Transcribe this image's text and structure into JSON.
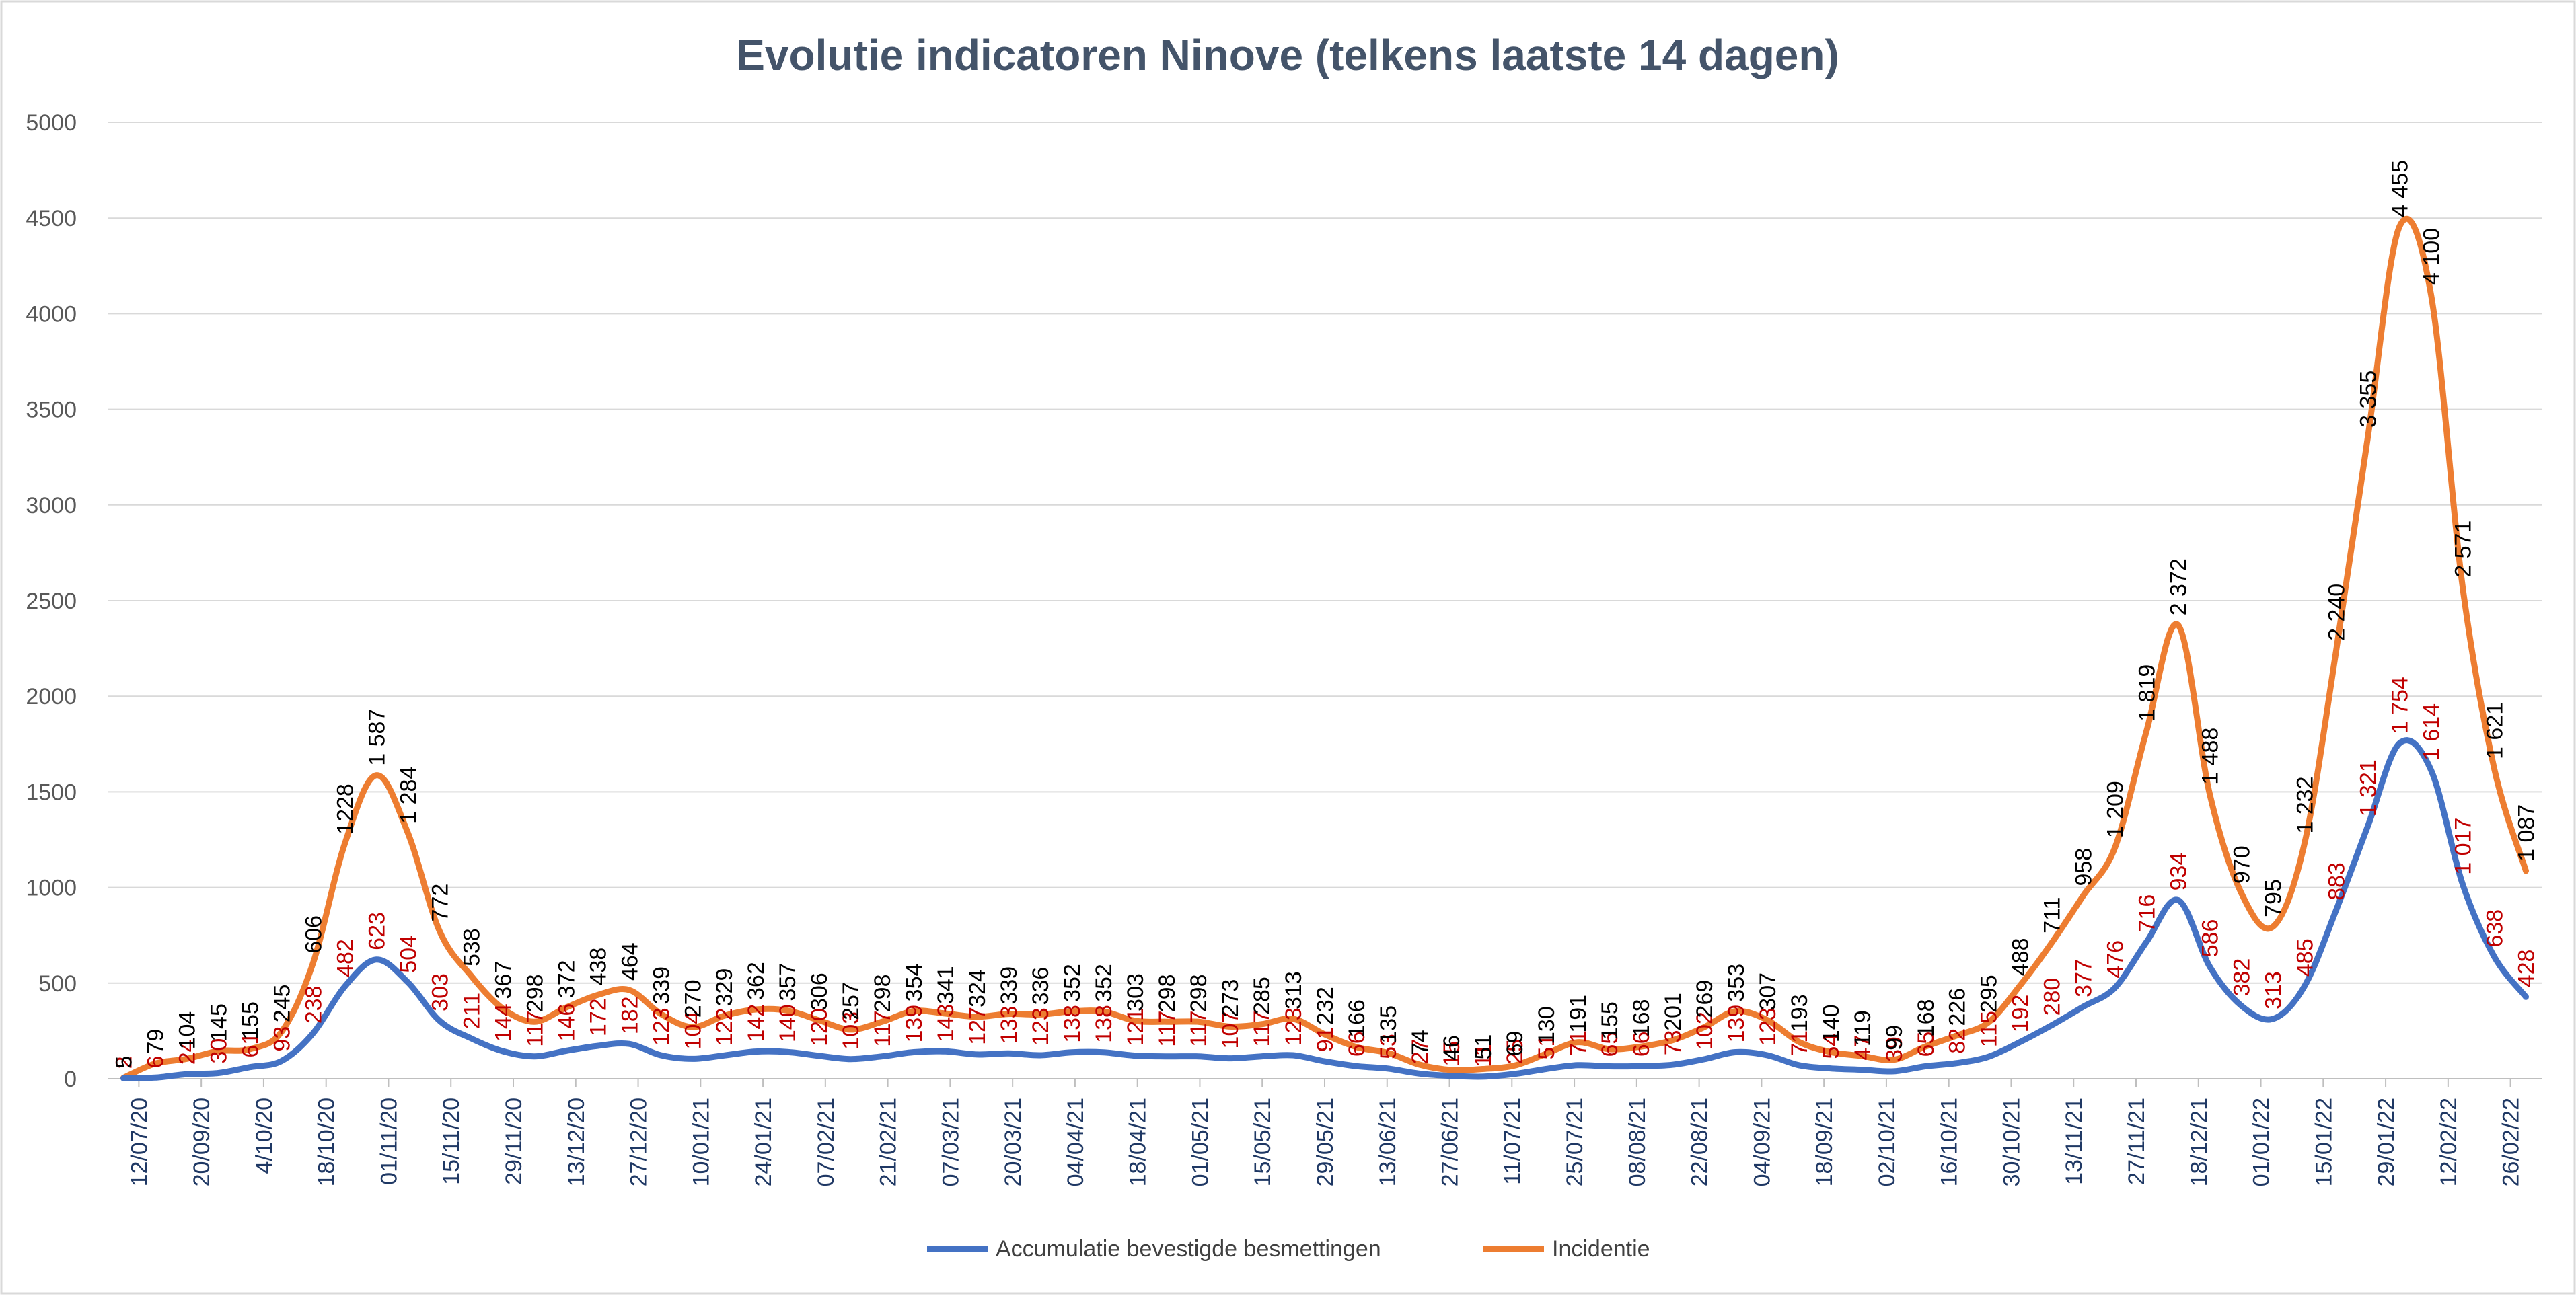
{
  "chart_data": {
    "type": "line",
    "title": "Evolutie indicatoren Ninove (telkens laatste 14 dagen)",
    "xlabel": "",
    "ylabel": "",
    "ylim": [
      0,
      5000
    ],
    "yticks": [
      "0",
      "500",
      "1000",
      "1500",
      "2000",
      "2500",
      "3000",
      "3500",
      "4000",
      "4500",
      "5000"
    ],
    "x_tick_labels": [
      "12/07/20",
      "20/09/20",
      "4/10/20",
      "18/10/20",
      "01/11/20",
      "15/11/20",
      "29/11/20",
      "13/12/20",
      "27/12/20",
      "10/01/21",
      "24/01/21",
      "07/02/21",
      "21/02/21",
      "07/03/21",
      "20/03/21",
      "04/04/21",
      "18/04/21",
      "01/05/21",
      "15/05/21",
      "29/05/21",
      "13/06/21",
      "27/06/21",
      "11/07/21",
      "25/07/21",
      "08/08/21",
      "22/08/21",
      "04/09/21",
      "18/09/21",
      "02/10/21",
      "16/10/21",
      "30/10/21",
      "13/11/21",
      "27/11/21",
      "18/12/21",
      "01/01/22",
      "15/01/22",
      "29/01/22",
      "12/02/22",
      "26/02/22"
    ],
    "series": [
      {
        "name": "Accumulatie bevestigde besmettingen",
        "color": "#4472c4",
        "label_color": "#c00000",
        "values": [
          2,
          6,
          24,
          30,
          61,
          93,
          238,
          482,
          623,
          504,
          303,
          211,
          144,
          117,
          146,
          172,
          182,
          123,
          104,
          122,
          142,
          140,
          120,
          103,
          117,
          139,
          143,
          127,
          133,
          123,
          138,
          138,
          121,
          117,
          117,
          107,
          117,
          123,
          91,
          66,
          53,
          27,
          15,
          11,
          25,
          51,
          71,
          65,
          66,
          73,
          102,
          139,
          123,
          71,
          54,
          47,
          39,
          65,
          82,
          115,
          192,
          280,
          377,
          476,
          716,
          934,
          586,
          382,
          313,
          485,
          883,
          1321,
          1754,
          1614,
          1017,
          638,
          428
        ],
        "labels": [
          "2",
          "6",
          "24",
          "30",
          "61",
          "93",
          "238",
          "482",
          "623",
          "504",
          "303",
          "211",
          "144",
          "117",
          "146",
          "172",
          "182",
          "123",
          "104",
          "122",
          "142",
          "140",
          "120",
          "103",
          "117",
          "139",
          "143",
          "127",
          "133",
          "123",
          "138",
          "138",
          "121",
          "117",
          "117",
          "107",
          "117",
          "123",
          "91",
          "66",
          "53",
          "27",
          "15",
          "11",
          "25",
          "51",
          "71",
          "65",
          "66",
          "73",
          "102",
          "139",
          "123",
          "71",
          "54",
          "47",
          "39",
          "65",
          "82",
          "115",
          "192",
          "280",
          "377",
          "476",
          "716",
          "934",
          "586",
          "382",
          "313",
          "485",
          "883",
          "1 321",
          "1 754",
          "1 614",
          "1 017",
          "638",
          "428"
        ]
      },
      {
        "name": "Incidentie",
        "color": "#ed7d31",
        "label_color": "#000000",
        "values": [
          5,
          79,
          104,
          145,
          155,
          245,
          606,
          1228,
          1587,
          1284,
          772,
          538,
          367,
          298,
          372,
          438,
          464,
          339,
          270,
          329,
          362,
          357,
          306,
          257,
          298,
          354,
          341,
          324,
          339,
          336,
          352,
          352,
          303,
          298,
          298,
          273,
          285,
          313,
          232,
          166,
          135,
          74,
          46,
          51,
          69,
          130,
          191,
          155,
          168,
          201,
          269,
          353,
          307,
          193,
          140,
          119,
          99,
          168,
          226,
          295,
          488,
          711,
          958,
          1209,
          1819,
          2372,
          1488,
          970,
          795,
          1232,
          2240,
          3355,
          4455,
          4100,
          2571,
          1621,
          1087
        ],
        "labels": [
          "5",
          "79",
          "104",
          "145",
          "155",
          "245",
          "606",
          "1228",
          "1 587",
          "1 284",
          "772",
          "538",
          "367",
          "298",
          "372",
          "438",
          "464",
          "339",
          "270",
          "329",
          "362",
          "357",
          "306",
          "257",
          "298",
          "354",
          "341",
          "324",
          "339",
          "336",
          "352",
          "352",
          "303",
          "298",
          "298",
          "273",
          "285",
          "313",
          "232",
          "166",
          "135",
          "74",
          "46",
          "51",
          "69",
          "130",
          "191",
          "155",
          "168",
          "201",
          "269",
          "353",
          "307",
          "193",
          "140",
          "119",
          "99",
          "168",
          "226",
          "295",
          "488",
          "711",
          "958",
          "1 209",
          "1 819",
          "2 372",
          "1 488",
          "970",
          "795",
          "1 232",
          "2 240",
          "3 355",
          "4 455",
          "4 100",
          "2 571",
          "1 621",
          "1 087"
        ]
      }
    ],
    "legend": [
      "Accumulatie bevestigde besmettingen",
      "Incidentie"
    ],
    "legend_position": "bottom",
    "grid": true
  }
}
